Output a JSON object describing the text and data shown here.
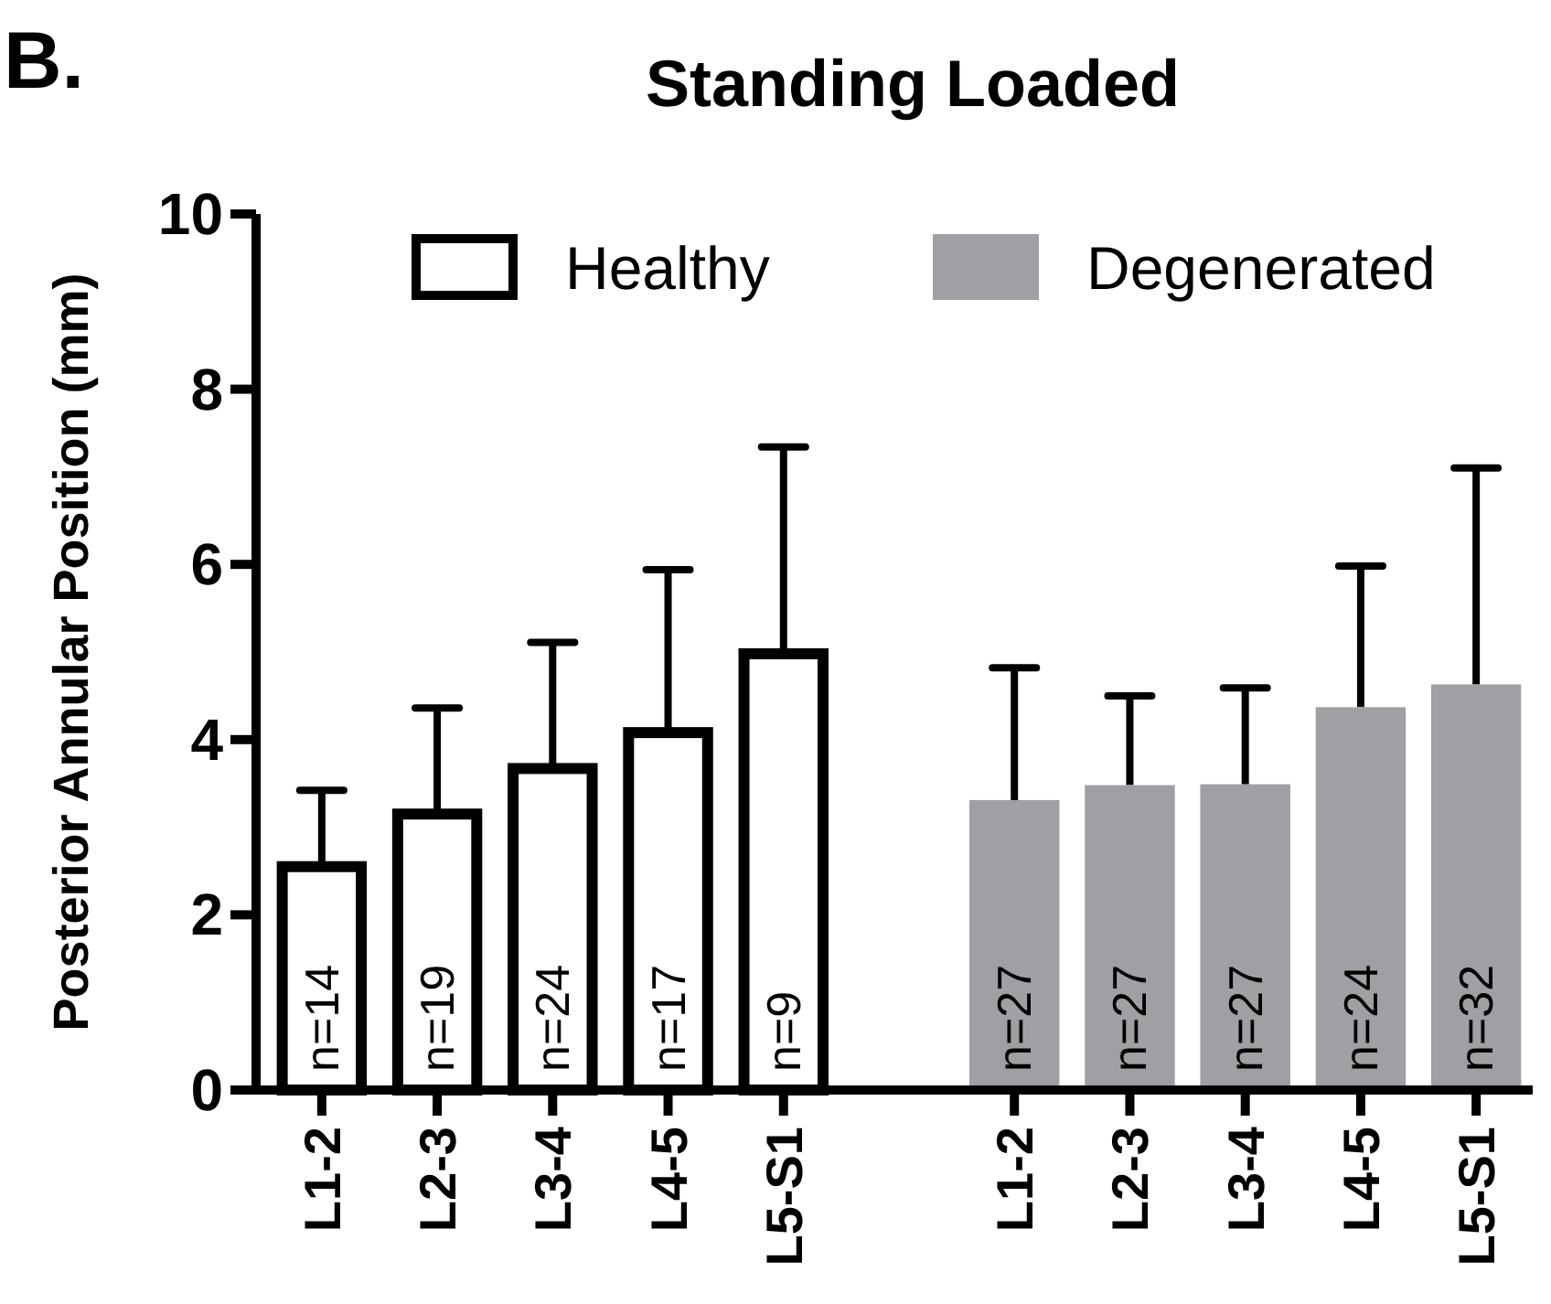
{
  "chart_data": {
    "type": "bar",
    "title": "Standing Loaded",
    "ylabel": "Posterior Annular Position (mm)",
    "annotations": [
      "B.",
      "n=14",
      "n=19",
      "n=24",
      "n=17",
      "n=9",
      "n=27",
      "n=27",
      "n=27",
      "n=24",
      "n=32"
    ],
    "categories": [
      "L1-2",
      "L2-3",
      "L3-4",
      "L4-5",
      "L5-S1",
      null,
      "L1-2",
      "L2-3",
      "L3-4",
      "L4-5",
      "L5-S1"
    ],
    "series": [
      {
        "name": "Healthy",
        "color": "#ffffff",
        "values": [
          2.55,
          3.15,
          3.67,
          4.08,
          4.98,
          null,
          null,
          null,
          null,
          null,
          null
        ],
        "errors": [
          [
            2.55,
            3.42
          ],
          [
            3.15,
            4.36
          ],
          [
            3.67,
            5.11
          ],
          [
            4.08,
            5.94
          ],
          [
            4.98,
            7.34
          ],
          null,
          null,
          null,
          null,
          null,
          null
        ]
      },
      {
        "name": "Degenerated",
        "color": "#a0a0a4",
        "values": [
          null,
          null,
          null,
          null,
          null,
          null,
          3.31,
          3.48,
          3.49,
          4.37,
          4.63
        ],
        "errors": [
          null,
          null,
          null,
          null,
          null,
          null,
          [
            3.31,
            4.82
          ],
          [
            3.48,
            4.5
          ],
          [
            3.49,
            4.59
          ],
          [
            4.37,
            5.98
          ],
          [
            4.63,
            7.1
          ]
        ]
      }
    ],
    "ylim": [
      0,
      10
    ],
    "yticks": [
      0,
      2,
      4,
      6,
      8,
      10
    ],
    "grid": false,
    "legend": "top"
  }
}
